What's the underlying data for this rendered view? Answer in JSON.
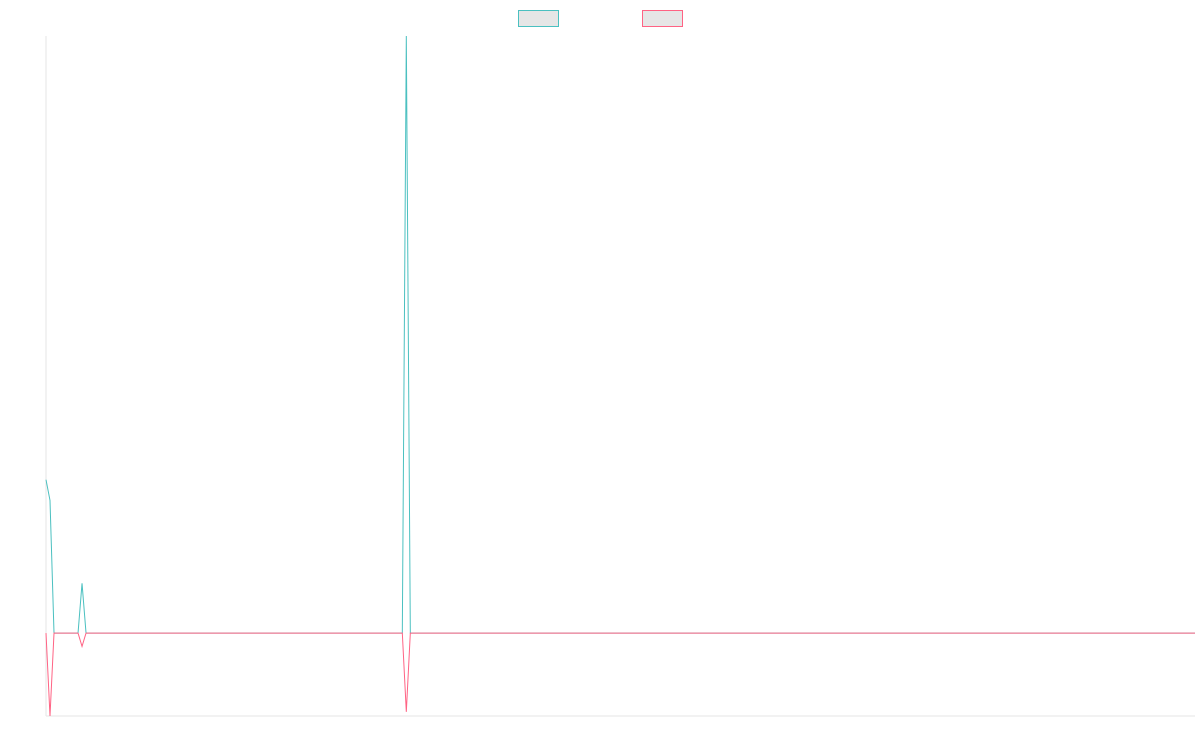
{
  "chart_data": {
    "type": "line",
    "title": "",
    "xlabel": "",
    "ylabel": "",
    "legend": "top-center",
    "grid": false,
    "x_count": 288,
    "ylim": [
      -100,
      720
    ],
    "series": [
      {
        "color": "#4bc0c0",
        "points": [
          [
            0,
            185
          ],
          [
            1,
            160
          ],
          [
            2,
            0
          ],
          [
            3,
            0
          ],
          [
            4,
            0
          ],
          [
            5,
            0
          ],
          [
            6,
            0
          ],
          [
            7,
            0
          ],
          [
            8,
            0
          ],
          [
            9,
            60
          ],
          [
            10,
            0
          ],
          [
            88,
            0
          ],
          [
            89,
            0
          ],
          [
            90,
            720
          ],
          [
            91,
            0
          ],
          [
            287,
            0
          ]
        ]
      },
      {
        "color": "#ff6384",
        "points": [
          [
            0,
            0
          ],
          [
            1,
            -100
          ],
          [
            2,
            0
          ],
          [
            3,
            0
          ],
          [
            4,
            0
          ],
          [
            5,
            0
          ],
          [
            6,
            0
          ],
          [
            7,
            0
          ],
          [
            8,
            0
          ],
          [
            9,
            -16
          ],
          [
            10,
            0
          ],
          [
            88,
            0
          ],
          [
            89,
            0
          ],
          [
            90,
            -95
          ],
          [
            91,
            0
          ],
          [
            287,
            0
          ]
        ]
      }
    ]
  }
}
